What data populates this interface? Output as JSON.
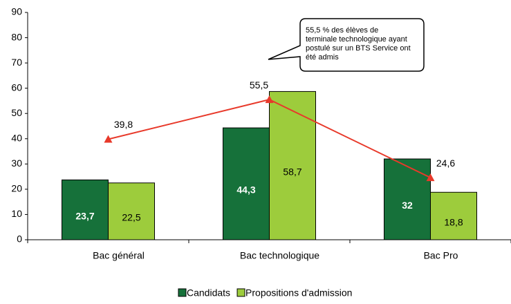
{
  "chart_data": {
    "type": "bar",
    "categories": [
      "Bac général",
      "Bac technologique",
      "Bac Pro"
    ],
    "series": [
      {
        "name": "Candidats",
        "color": "#16713a",
        "values": [
          23.7,
          44.3,
          32
        ],
        "value_labels": [
          "23,7",
          "44,3",
          "32"
        ]
      },
      {
        "name": "Propositions d'admission",
        "color": "#9dcc3c",
        "values": [
          22.5,
          58.7,
          18.8
        ],
        "value_labels": [
          "22,5",
          "58,7",
          "18,8"
        ]
      },
      {
        "type": "line",
        "color": "#e8392a",
        "values": [
          39.8,
          55.5,
          24.6
        ],
        "value_labels": [
          "39,8",
          "55,5",
          "24,6"
        ]
      }
    ],
    "annotation": [
      "55,5 % des élèves de",
      "terminale technologique ayant",
      "postulé sur un BTS Service ont",
      "été admis"
    ],
    "ylim": [
      0,
      90
    ],
    "yticks": [
      0,
      10,
      20,
      30,
      40,
      50,
      60,
      70,
      80,
      90
    ],
    "grid": false,
    "legend": "bottom"
  }
}
